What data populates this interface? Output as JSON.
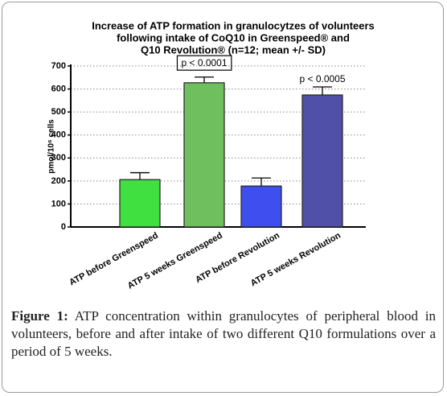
{
  "chart_data": {
    "type": "bar",
    "title": [
      "Increase of ATP formation in granulocytzes of volunteers",
      "following intake of CoQ10 in Greenspeed® and",
      "Q10 Revolution® (n=12; mean +/- SD)"
    ],
    "ylabel": "pmol/10⁶ cells",
    "categories": [
      "ATP before Greenspeed",
      "ATP 5 weeks Greenspeed",
      "ATP before Revolution",
      "ATP 5 weeks Revolution"
    ],
    "values": [
      206,
      627,
      178,
      574
    ],
    "errors": [
      30,
      25,
      35,
      35
    ],
    "colors": [
      "#3fe03f",
      "#6fbf5f",
      "#3f4fef",
      "#5050a8"
    ],
    "ylim": [
      0,
      700
    ],
    "yticks": [
      0,
      100,
      200,
      300,
      400,
      500,
      600,
      700
    ],
    "grid": true,
    "annotations": [
      {
        "text": "p < 0.0001",
        "boxed": true
      },
      {
        "text": "p < 0.0005",
        "boxed": false
      }
    ]
  },
  "caption": {
    "label": "Figure 1:",
    "text": "ATP concentration within granulocytes of peripheral blood in volunteers, before and after intake of two different Q10 formulations over a period of 5 weeks."
  }
}
